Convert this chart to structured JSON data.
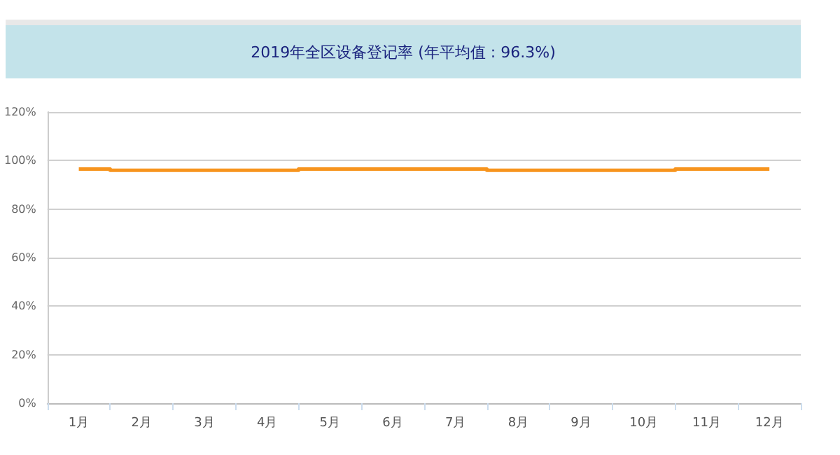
{
  "chart_data": {
    "type": "step",
    "title": "2019年全区设备登记率 (年平均值 : 96.3%)",
    "categories": [
      "1月",
      "2月",
      "3月",
      "4月",
      "5月",
      "6月",
      "7月",
      "8月",
      "9月",
      "10月",
      "11月",
      "12月"
    ],
    "series": [
      {
        "color": "#f7941d",
        "values": [
          96.5,
          96,
          96,
          96,
          96.5,
          96.5,
          96.5,
          96,
          96,
          96,
          96.5,
          96.5
        ]
      }
    ],
    "ylim": [
      0,
      120
    ],
    "yticks": [
      {
        "value": 0,
        "label": "0%"
      },
      {
        "value": 20,
        "label": "20%"
      },
      {
        "value": 40,
        "label": "40%"
      },
      {
        "value": 60,
        "label": "60%"
      },
      {
        "value": 80,
        "label": "80%"
      },
      {
        "value": 100,
        "label": "100%"
      },
      {
        "value": 120,
        "label": "120%"
      }
    ],
    "grid": "y",
    "marker": "none",
    "line_style": "solid"
  }
}
